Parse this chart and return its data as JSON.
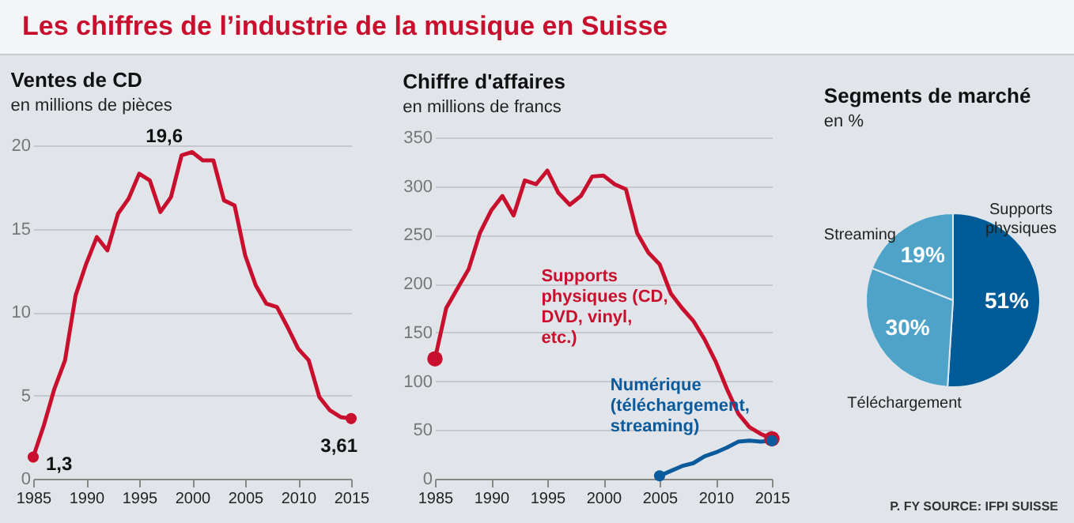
{
  "chart_data": [
    {
      "type": "line",
      "title": "Ventes de CD",
      "subtitle": "en millions de pièces",
      "annotations": [
        "Les chiffres de l’industrie de la musique en Suisse"
      ],
      "x": [
        1985,
        1986,
        1987,
        1988,
        1989,
        1990,
        1991,
        1992,
        1993,
        1994,
        1995,
        1996,
        1997,
        1998,
        1999,
        2000,
        2001,
        2002,
        2003,
        2004,
        2005,
        2006,
        2007,
        2008,
        2009,
        2010,
        2011,
        2012,
        2013,
        2014,
        2015
      ],
      "series": [
        {
          "color": "#c8102e",
          "values": [
            1.3,
            3.2,
            5.4,
            7.1,
            11.0,
            12.9,
            14.5,
            13.7,
            15.9,
            16.8,
            18.3,
            17.9,
            16.0,
            16.9,
            19.4,
            19.6,
            19.1,
            19.1,
            16.7,
            16.4,
            13.4,
            11.6,
            10.5,
            10.3,
            9.1,
            7.8,
            7.1,
            4.9,
            4.1,
            3.7,
            3.61
          ],
          "value_labels": [
            "1,3",
            null,
            null,
            null,
            null,
            null,
            null,
            null,
            null,
            null,
            null,
            null,
            null,
            null,
            null,
            "19,6",
            null,
            null,
            null,
            null,
            null,
            null,
            null,
            null,
            null,
            null,
            null,
            null,
            null,
            null,
            "3,61"
          ]
        }
      ],
      "xlim": [
        1985,
        2015
      ],
      "xticks": [
        1985,
        1990,
        1995,
        2000,
        2005,
        2010,
        2015
      ],
      "ylim": [
        0,
        20
      ],
      "yticks": [
        0,
        5,
        10,
        15,
        20
      ],
      "grid": "y"
    },
    {
      "type": "line",
      "title": "Chiffre d'affaires",
      "subtitle": "en millions de francs",
      "x": [
        1985,
        1986,
        1987,
        1988,
        1989,
        1990,
        1991,
        1992,
        1993,
        1994,
        1995,
        1996,
        1997,
        1998,
        1999,
        2000,
        2001,
        2002,
        2003,
        2004,
        2005,
        2006,
        2007,
        2008,
        2009,
        2010,
        2011,
        2012,
        2013,
        2014,
        2015
      ],
      "series": [
        {
          "name": "Supports physiques (CD, DVD, vinyl, etc.)",
          "color": "#c8102e",
          "values": [
            123,
            175,
            195,
            215,
            252,
            275,
            290,
            270,
            306,
            302,
            316,
            293,
            281,
            290,
            310,
            311,
            302,
            297,
            252,
            232,
            220,
            190,
            175,
            162,
            143,
            120,
            92,
            67,
            53,
            46,
            41
          ]
        },
        {
          "name": "Numérique (téléchargement, streaming)",
          "color": "#0a5a9c",
          "values": [
            null,
            null,
            null,
            null,
            null,
            null,
            null,
            null,
            null,
            null,
            null,
            null,
            null,
            null,
            null,
            null,
            null,
            null,
            null,
            null,
            3,
            8,
            13,
            16,
            23,
            27,
            32,
            38,
            39,
            38,
            39
          ]
        }
      ],
      "xlim": [
        1985,
        2015
      ],
      "xticks": [
        1985,
        1990,
        1995,
        2000,
        2005,
        2010,
        2015
      ],
      "ylim": [
        0,
        350
      ],
      "yticks": [
        0,
        50,
        100,
        150,
        200,
        250,
        300,
        350
      ],
      "grid": "y"
    },
    {
      "type": "pie",
      "title": "Segments de marché",
      "subtitle": "en %",
      "annotations": [
        "P. FY SOURCE: IFPI SUISSE"
      ],
      "categories": [
        "Supports physiques",
        "Téléchargement",
        "Streaming"
      ],
      "values": [
        51,
        30,
        19
      ],
      "colors": [
        "#005b96",
        "#4fa3c9",
        "#4fa3c9"
      ],
      "value_labels": [
        "51%",
        "30%",
        "19%"
      ]
    }
  ]
}
